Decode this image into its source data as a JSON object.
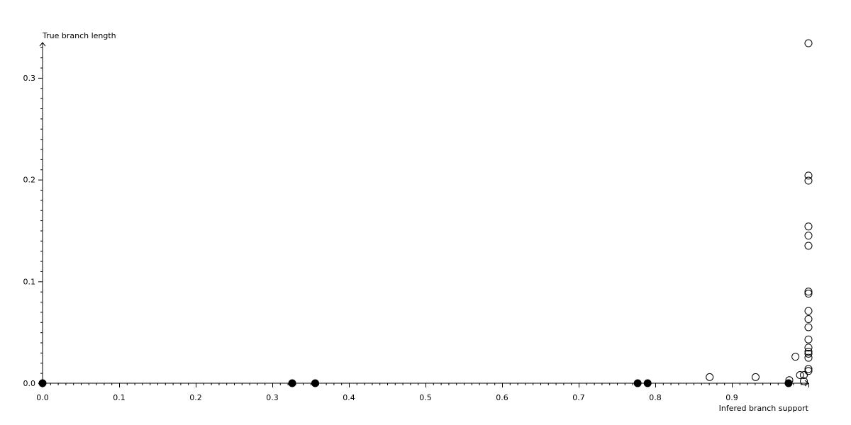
{
  "chart_data": {
    "type": "scatter",
    "xlabel": "Infered branch support",
    "ylabel": "True branch length",
    "xlim": [
      0,
      1.0
    ],
    "ylim": [
      0,
      0.334
    ],
    "x_ticks": [
      "0.0",
      "0.1",
      "0.2",
      "0.3",
      "0.4",
      "0.5",
      "0.6",
      "0.7",
      "0.8",
      "0.9"
    ],
    "y_ticks": [
      "0.0",
      "0.1",
      "0.2",
      "0.3"
    ],
    "grid": false,
    "colors": {
      "axis": "#000000",
      "filled_marker": "#000000",
      "open_marker_fill": "#ffffff"
    },
    "series": [
      {
        "marker": "filled-circle",
        "points": [
          [
            0.0,
            0.0
          ],
          [
            0.326,
            0.0
          ],
          [
            0.356,
            0.0
          ],
          [
            0.777,
            0.0
          ],
          [
            0.79,
            0.0
          ],
          [
            0.974,
            0.0
          ]
        ]
      },
      {
        "marker": "open-circle",
        "points": [
          [
            1.0,
            0.334
          ],
          [
            1.0,
            0.204
          ],
          [
            1.0,
            0.199
          ],
          [
            1.0,
            0.154
          ],
          [
            1.0,
            0.145
          ],
          [
            1.0,
            0.135
          ],
          [
            1.0,
            0.09
          ],
          [
            1.0,
            0.088
          ],
          [
            1.0,
            0.071
          ],
          [
            1.0,
            0.063
          ],
          [
            1.0,
            0.055
          ],
          [
            1.0,
            0.043
          ],
          [
            1.0,
            0.035
          ],
          [
            1.0,
            0.031
          ],
          [
            1.0,
            0.029
          ],
          [
            1.0,
            0.025
          ],
          [
            1.0,
            0.014
          ],
          [
            1.0,
            0.012
          ],
          [
            0.871,
            0.006
          ],
          [
            0.931,
            0.006
          ],
          [
            0.983,
            0.026
          ],
          [
            0.975,
            0.003
          ],
          [
            0.989,
            0.008
          ],
          [
            0.994,
            0.008
          ],
          [
            0.994,
            0.002
          ]
        ]
      }
    ]
  }
}
